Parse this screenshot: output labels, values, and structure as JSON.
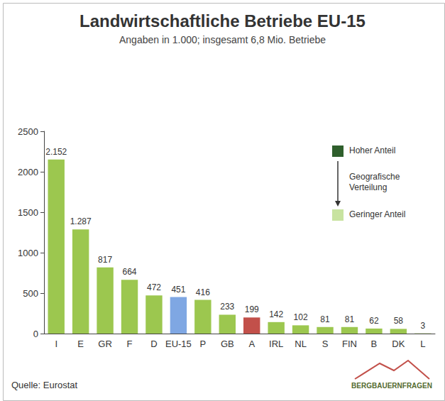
{
  "chart_data": {
    "type": "bar",
    "title": "Landwirtschaftliche Betriebe EU-15",
    "subtitle": "Angaben in 1.000; insgesamt 6,8 Mio. Betriebe",
    "categories": [
      "I",
      "E",
      "GR",
      "F",
      "D",
      "EU-15",
      "P",
      "GB",
      "A",
      "IRL",
      "NL",
      "S",
      "FIN",
      "B",
      "DK",
      "L"
    ],
    "values": [
      2152,
      1287,
      817,
      664,
      472,
      451,
      416,
      233,
      199,
      142,
      102,
      81,
      81,
      62,
      58,
      3
    ],
    "value_labels": [
      "2.152",
      "1.287",
      "817",
      "664",
      "472",
      "451",
      "416",
      "233",
      "199",
      "142",
      "102",
      "81",
      "81",
      "62",
      "58",
      "3"
    ],
    "colors": [
      "#9cc74f",
      "#9cc74f",
      "#9cc74f",
      "#9cc74f",
      "#9cc74f",
      "#7fa7e3",
      "#9cc74f",
      "#9cc74f",
      "#c2504a",
      "#9cc74f",
      "#9cc74f",
      "#9cc74f",
      "#9cc74f",
      "#9cc74f",
      "#9cc74f",
      "#9cc74f"
    ],
    "ylim": [
      0,
      2500
    ],
    "yticks": [
      0,
      500,
      1000,
      1500,
      2000,
      2500
    ],
    "grid": false,
    "data_labels": true,
    "annotations": [
      "Hoher Anteil",
      "Geografische Verteilung",
      "Geringer Anteil",
      "Quelle: Eurostat",
      "BERGBAUERNFRAGEN"
    ]
  }
}
